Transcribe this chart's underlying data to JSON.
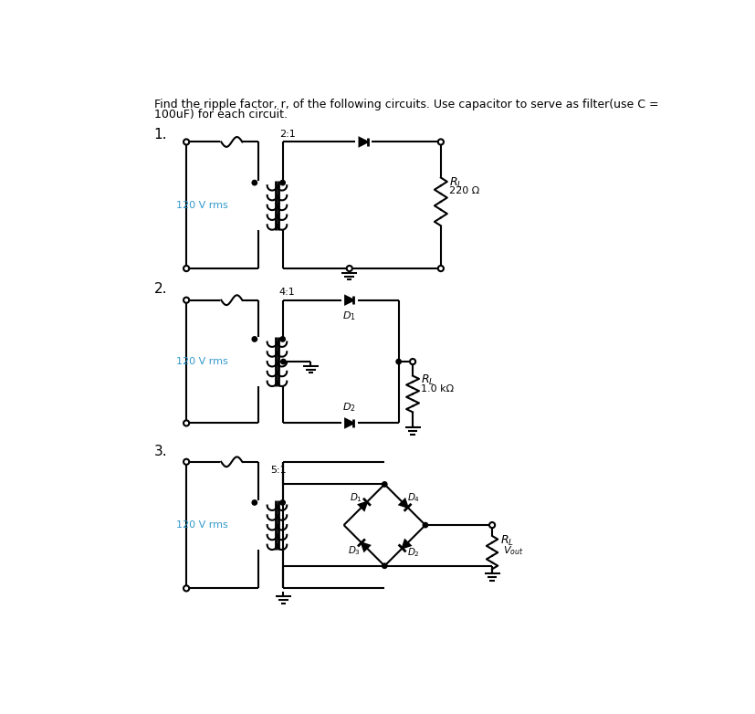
{
  "title_line1": "Find the ripple factor, r, of the following circuits. Use capacitor to serve as filter(use C =",
  "title_line2": "100uF) for each circuit.",
  "c1_label": "1.",
  "c1_ratio": "2:1",
  "c1_source": "120 V rms",
  "c1_rl": "R_L",
  "c1_rl_val": "220 Ω",
  "c2_label": "2.",
  "c2_ratio": "4:1",
  "c2_source": "120 V rms",
  "c2_d1": "D_1",
  "c2_d2": "D_2",
  "c2_rl": "R_L",
  "c2_rl_val": "1.0 kΩ",
  "c3_label": "3.",
  "c3_ratio": "5:1",
  "c3_source": "120 V rms",
  "c3_d1": "D_1",
  "c3_d2": "D_2",
  "c3_d3": "D_3",
  "c3_d4": "D_4",
  "c3_rl": "R_L",
  "c3_vout": "V_out",
  "bg": "#ffffff",
  "lc": "#000000",
  "src_color": "#3399cc",
  "lw": 1.5
}
